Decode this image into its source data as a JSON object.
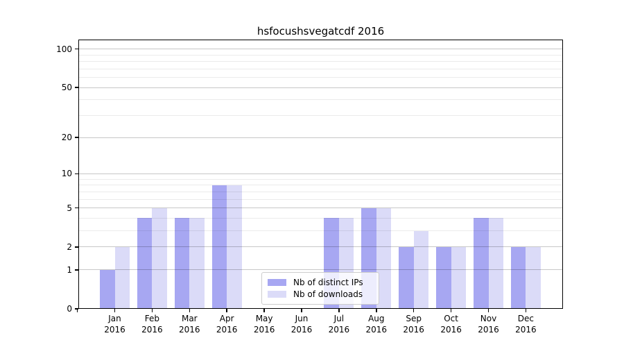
{
  "title_text": "hsfocushsvegatcdf 2016",
  "colors": {
    "bar_distinct_ips": "#a7a7f2",
    "bar_downloads": "#dbdbf8",
    "grid_major": "rgba(0,0,0,0.22)",
    "grid_minor": "rgba(0,0,0,0.08)",
    "axis": "#000000",
    "legend_border": "#cccccc",
    "legend_bg": "rgba(255,255,255,0.8)",
    "text": "#000000",
    "background": "#ffffff"
  },
  "chart_data": {
    "type": "bar",
    "title": "hsfocushsvegatcdf 2016",
    "categories": [
      {
        "month": "Jan",
        "year": "2016"
      },
      {
        "month": "Feb",
        "year": "2016"
      },
      {
        "month": "Mar",
        "year": "2016"
      },
      {
        "month": "Apr",
        "year": "2016"
      },
      {
        "month": "May",
        "year": "2016"
      },
      {
        "month": "Jun",
        "year": "2016"
      },
      {
        "month": "Jul",
        "year": "2016"
      },
      {
        "month": "Aug",
        "year": "2016"
      },
      {
        "month": "Sep",
        "year": "2016"
      },
      {
        "month": "Oct",
        "year": "2016"
      },
      {
        "month": "Nov",
        "year": "2016"
      },
      {
        "month": "Dec",
        "year": "2016"
      }
    ],
    "series": [
      {
        "name": "Nb of distinct IPs",
        "values": [
          1,
          4,
          4,
          8,
          0,
          0,
          4,
          5,
          2,
          2,
          4,
          2
        ]
      },
      {
        "name": "Nb of downloads",
        "values": [
          2,
          5,
          4,
          8,
          0,
          0,
          4,
          5,
          3,
          2,
          4,
          2
        ]
      }
    ],
    "xlabel": "",
    "ylabel": "",
    "yscale": "log1p",
    "ylim": [
      0,
      118.5
    ],
    "yticks_major": [
      0,
      1,
      2,
      5,
      10,
      20,
      50,
      100
    ],
    "yticks_minor": [
      3,
      4,
      6,
      7,
      8,
      9,
      30,
      40,
      60,
      70,
      80,
      90
    ],
    "grid": "on",
    "legend_position": "lower-center-inside"
  }
}
